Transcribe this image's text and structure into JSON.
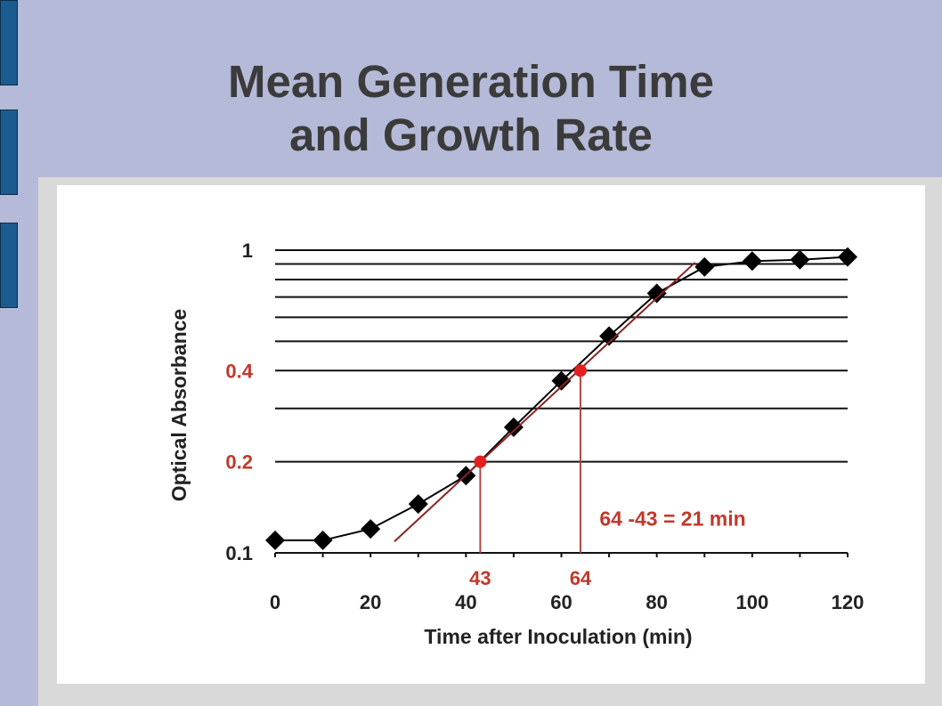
{
  "slide": {
    "title_line1": "Mean Generation Time",
    "title_line2": "and Growth Rate"
  },
  "chart_data": {
    "type": "line",
    "title": "",
    "xlabel": "Time after Inoculation (min)",
    "ylabel": "Optical Absorbance",
    "xlim": [
      0,
      120
    ],
    "ylim": [
      0.1,
      1
    ],
    "yscale": "log",
    "grid": "horizontal",
    "x_ticks": [
      0,
      20,
      40,
      60,
      80,
      100,
      120
    ],
    "x_tick_labels": [
      "0",
      "20",
      "40",
      "60",
      "80",
      "100",
      "120"
    ],
    "y_tick_labels": [
      {
        "value": 1,
        "label": "1",
        "color": "#222222"
      },
      {
        "value": 0.4,
        "label": "0.4",
        "color": "#c0392b"
      },
      {
        "value": 0.2,
        "label": "0.2",
        "color": "#c0392b"
      },
      {
        "value": 0.1,
        "label": "0.1",
        "color": "#222222"
      }
    ],
    "series": [
      {
        "marker": "diamond",
        "color": "#000000",
        "x": [
          0,
          10,
          20,
          30,
          40,
          50,
          60,
          70,
          80,
          90,
          100,
          110,
          120
        ],
        "y": [
          0.11,
          0.11,
          0.12,
          0.145,
          0.18,
          0.26,
          0.37,
          0.52,
          0.72,
          0.88,
          0.92,
          0.93,
          0.95
        ]
      }
    ],
    "trend_line": {
      "color": "#8b2323",
      "x": [
        25,
        88
      ],
      "y": [
        0.109,
        0.91
      ]
    },
    "highlight_points": [
      {
        "x": 43,
        "y": 0.2,
        "label": "43",
        "color": "#e32020"
      },
      {
        "x": 64,
        "y": 0.4,
        "label": "64",
        "color": "#e32020"
      }
    ],
    "annotation": {
      "text": "64 -43 = 21 min",
      "color": "#c0392b",
      "x": 68,
      "y": 0.13
    }
  }
}
